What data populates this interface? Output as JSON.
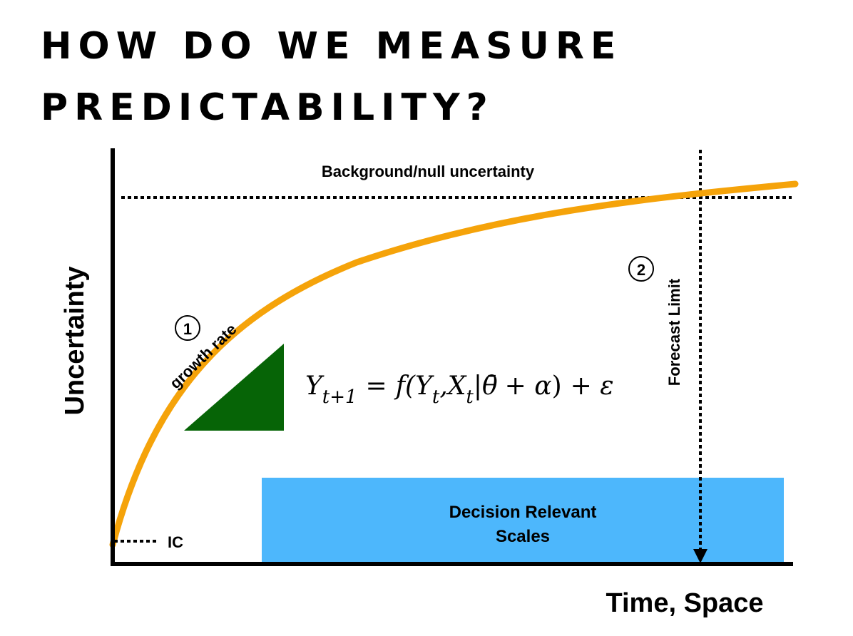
{
  "title": {
    "line1": "HOW DO WE MEASURE",
    "line2": "PREDICTABILITY?"
  },
  "diagram": {
    "y_axis_label": "Uncertainty",
    "x_axis_label": "Time, Space",
    "background_label": "Background/null uncertainty",
    "ic_label": "IC",
    "marker_1": "1",
    "growth_rate_label": "growth rate",
    "marker_2": "2",
    "forecast_limit_label": "Forecast Limit",
    "decision_box": {
      "line1": "Decision Relevant",
      "line2": "Scales"
    },
    "equation": {
      "lhs": "Y",
      "lhs_sub": "t+1",
      "equals": "=",
      "fn_open": "f(Y",
      "sub_t1": "t",
      "comma_x": ",X",
      "sub_t2": "t",
      "bar": "|",
      "theta": "θ̄",
      "plus_alpha": "+ α",
      "close": ")",
      "plus_eps": "+ ε"
    },
    "colors": {
      "curve": "#f5a30a",
      "triangle": "#066406",
      "decision_box": "#4db7fc",
      "axes": "#000000"
    }
  }
}
